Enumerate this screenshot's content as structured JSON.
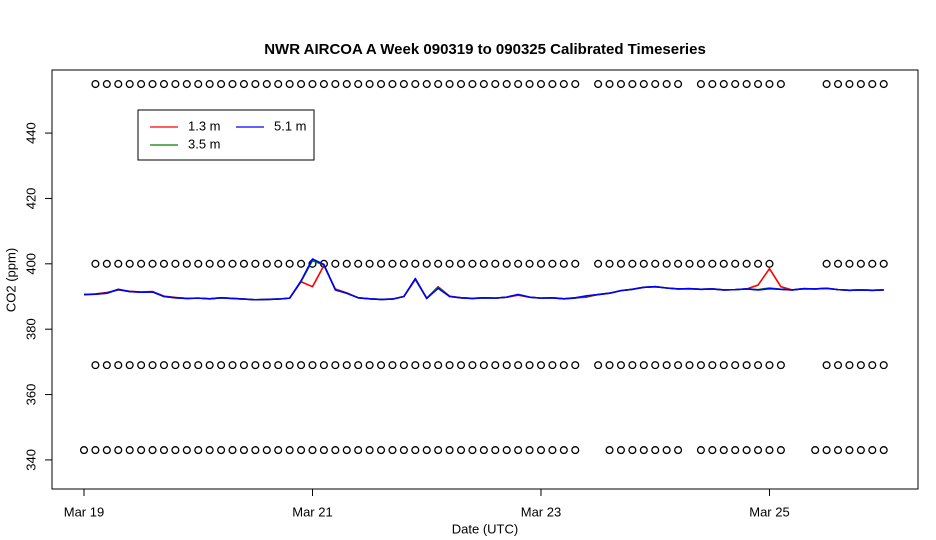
{
  "chart_data": {
    "type": "line",
    "title": "NWR AIRCOA A  Week 090319 to 090325  Calibrated Timeseries",
    "x_label": "Date (UTC)",
    "y_label": "CO2 (ppm)",
    "xlim": [
      18.72,
      26.3
    ],
    "ylim": [
      331.1,
      459.3
    ],
    "xticks": [
      {
        "value": 19,
        "label": "Mar 19"
      },
      {
        "value": 21,
        "label": "Mar 21"
      },
      {
        "value": 23,
        "label": "Mar 23"
      },
      {
        "value": 25,
        "label": "Mar 25"
      }
    ],
    "yticks": [
      340,
      360,
      380,
      400,
      420,
      440
    ],
    "legend": "top-left",
    "x": [
      19.0,
      19.1,
      19.2,
      19.3,
      19.4,
      19.5,
      19.6,
      19.7,
      19.8,
      19.9,
      20.0,
      20.1,
      20.2,
      20.3,
      20.4,
      20.5,
      20.6,
      20.7,
      20.8,
      20.9,
      21.0,
      21.1,
      21.2,
      21.3,
      21.4,
      21.5,
      21.6,
      21.7,
      21.8,
      21.9,
      22.0,
      22.1,
      22.2,
      22.3,
      22.4,
      22.5,
      22.6,
      22.7,
      22.8,
      22.9,
      23.0,
      23.1,
      23.2,
      23.3,
      23.4,
      23.5,
      23.6,
      23.7,
      23.8,
      23.9,
      24.0,
      24.1,
      24.2,
      24.3,
      24.4,
      24.5,
      24.6,
      24.7,
      24.8,
      24.9,
      25.0,
      25.1,
      25.2,
      25.3,
      25.4,
      25.5,
      25.6,
      25.7,
      25.8,
      25.9,
      26.0
    ],
    "series": [
      {
        "name": "1.3 m",
        "color": "#ff0000",
        "values": [
          390.6,
          390.8,
          391.2,
          392.0,
          391.6,
          391.4,
          391.5,
          390.1,
          389.7,
          389.4,
          389.5,
          389.3,
          389.6,
          389.4,
          389.2,
          389.0,
          389.1,
          389.2,
          389.5,
          394.5,
          393.0,
          399.5,
          392.3,
          391.1,
          389.6,
          389.3,
          389.1,
          389.2,
          390.0,
          395.2,
          389.5,
          393.0,
          390.1,
          389.6,
          389.4,
          389.6,
          389.5,
          389.8,
          390.4,
          389.8,
          389.5,
          389.6,
          389.3,
          389.6,
          389.8,
          390.6,
          391.0,
          391.8,
          392.2,
          392.8,
          393.0,
          392.6,
          392.3,
          392.4,
          392.2,
          392.3,
          392.0,
          392.1,
          392.3,
          393.5,
          398.5,
          393.0,
          392.0,
          392.4,
          392.3,
          392.5,
          392.1,
          391.9,
          392.0,
          391.9,
          392.0
        ]
      },
      {
        "name": "3.5 m",
        "color": "#008000",
        "values": [
          390.6,
          390.7,
          391.0,
          392.1,
          391.5,
          391.3,
          391.4,
          390.0,
          389.6,
          389.4,
          389.5,
          389.3,
          389.6,
          389.4,
          389.2,
          389.0,
          389.1,
          389.2,
          389.5,
          394.6,
          401.0,
          399.6,
          392.1,
          391.0,
          389.6,
          389.3,
          389.1,
          389.2,
          390.0,
          395.3,
          389.4,
          392.8,
          390.0,
          389.6,
          389.4,
          389.6,
          389.5,
          389.8,
          390.6,
          389.8,
          389.5,
          389.6,
          389.3,
          389.5,
          390.1,
          390.6,
          391.0,
          391.8,
          392.2,
          392.8,
          393.0,
          392.6,
          392.3,
          392.4,
          392.2,
          392.3,
          392.0,
          392.1,
          392.3,
          392.1,
          392.6,
          392.2,
          392.0,
          392.4,
          392.3,
          392.5,
          392.1,
          391.9,
          392.0,
          391.9,
          392.0
        ]
      },
      {
        "name": "5.1 m",
        "color": "#0000ff",
        "values": [
          390.6,
          390.7,
          391.0,
          392.2,
          391.5,
          391.3,
          391.4,
          390.0,
          389.6,
          389.4,
          389.5,
          389.3,
          389.6,
          389.4,
          389.2,
          389.0,
          389.1,
          389.2,
          389.5,
          394.8,
          401.5,
          399.8,
          392.0,
          391.0,
          389.6,
          389.3,
          389.1,
          389.2,
          390.0,
          395.5,
          389.4,
          392.5,
          390.0,
          389.6,
          389.4,
          389.6,
          389.5,
          389.8,
          390.6,
          389.8,
          389.5,
          389.6,
          389.3,
          389.6,
          390.2,
          390.6,
          391.0,
          391.8,
          392.2,
          392.8,
          393.0,
          392.6,
          392.3,
          392.4,
          392.2,
          392.3,
          392.0,
          392.1,
          392.3,
          392.0,
          392.4,
          392.2,
          392.0,
          392.4,
          392.3,
          392.5,
          392.1,
          391.9,
          392.0,
          391.9,
          392.0
        ]
      }
    ],
    "points": [
      {
        "y": 455,
        "color": "#000000",
        "x": [
          19.1,
          19.2,
          19.3,
          19.4,
          19.5,
          19.6,
          19.7,
          19.8,
          19.9,
          20.0,
          20.1,
          20.2,
          20.3,
          20.4,
          20.5,
          20.6,
          20.7,
          20.8,
          20.9,
          21.0,
          21.1,
          21.2,
          21.3,
          21.4,
          21.5,
          21.6,
          21.7,
          21.8,
          21.9,
          22.0,
          22.1,
          22.2,
          22.3,
          22.4,
          22.5,
          22.6,
          22.7,
          22.8,
          22.9,
          23.0,
          23.1,
          23.2,
          23.3,
          23.5,
          23.6,
          23.7,
          23.8,
          23.9,
          24.0,
          24.1,
          24.2,
          24.4,
          24.5,
          24.6,
          24.7,
          24.8,
          24.9,
          25.0,
          25.1,
          25.5,
          25.6,
          25.7,
          25.8,
          25.9,
          26.0
        ]
      },
      {
        "y": 400,
        "color": "#000000",
        "x": [
          19.1,
          19.2,
          19.3,
          19.4,
          19.5,
          19.6,
          19.7,
          19.8,
          19.9,
          20.0,
          20.1,
          20.2,
          20.3,
          20.4,
          20.5,
          20.6,
          20.7,
          20.8,
          20.9,
          21.0,
          21.1,
          21.2,
          21.3,
          21.4,
          21.5,
          21.6,
          21.7,
          21.8,
          21.9,
          22.0,
          22.1,
          22.2,
          22.3,
          22.4,
          22.5,
          22.6,
          22.7,
          22.8,
          22.9,
          23.0,
          23.1,
          23.2,
          23.3,
          23.5,
          23.6,
          23.7,
          23.8,
          23.9,
          24.0,
          24.1,
          24.2,
          24.3,
          24.4,
          24.5,
          24.6,
          24.7,
          24.8,
          24.9,
          25.0,
          25.5,
          25.6,
          25.7,
          25.8,
          25.9,
          26.0
        ]
      },
      {
        "y": 369,
        "color": "#000000",
        "x": [
          19.1,
          19.2,
          19.3,
          19.4,
          19.5,
          19.6,
          19.7,
          19.8,
          19.9,
          20.0,
          20.1,
          20.2,
          20.3,
          20.4,
          20.5,
          20.6,
          20.7,
          20.8,
          20.9,
          21.0,
          21.1,
          21.2,
          21.3,
          21.4,
          21.5,
          21.6,
          21.7,
          21.8,
          21.9,
          22.0,
          22.1,
          22.2,
          22.3,
          22.4,
          22.5,
          22.6,
          22.7,
          22.8,
          22.9,
          23.0,
          23.1,
          23.2,
          23.3,
          23.5,
          23.6,
          23.7,
          23.8,
          23.9,
          24.0,
          24.1,
          24.2,
          24.3,
          24.4,
          24.5,
          24.6,
          24.7,
          24.8,
          24.9,
          25.0,
          25.1,
          25.5,
          25.6,
          25.7,
          25.8,
          25.9,
          26.0
        ]
      },
      {
        "y": 343,
        "color": "#000000",
        "x": [
          19.0,
          19.1,
          19.2,
          19.3,
          19.4,
          19.5,
          19.6,
          19.7,
          19.8,
          19.9,
          20.0,
          20.1,
          20.2,
          20.3,
          20.4,
          20.5,
          20.6,
          20.7,
          20.8,
          20.9,
          21.0,
          21.1,
          21.2,
          21.3,
          21.4,
          21.5,
          21.6,
          21.7,
          21.8,
          21.9,
          22.0,
          22.1,
          22.2,
          22.3,
          22.4,
          22.5,
          22.6,
          22.7,
          22.8,
          22.9,
          23.0,
          23.1,
          23.2,
          23.3,
          23.6,
          23.7,
          23.8,
          23.9,
          24.0,
          24.1,
          24.2,
          24.4,
          24.5,
          24.6,
          24.7,
          24.8,
          24.9,
          25.0,
          25.1,
          25.4,
          25.5,
          25.6,
          25.7,
          25.8,
          25.9,
          26.0
        ]
      }
    ]
  }
}
